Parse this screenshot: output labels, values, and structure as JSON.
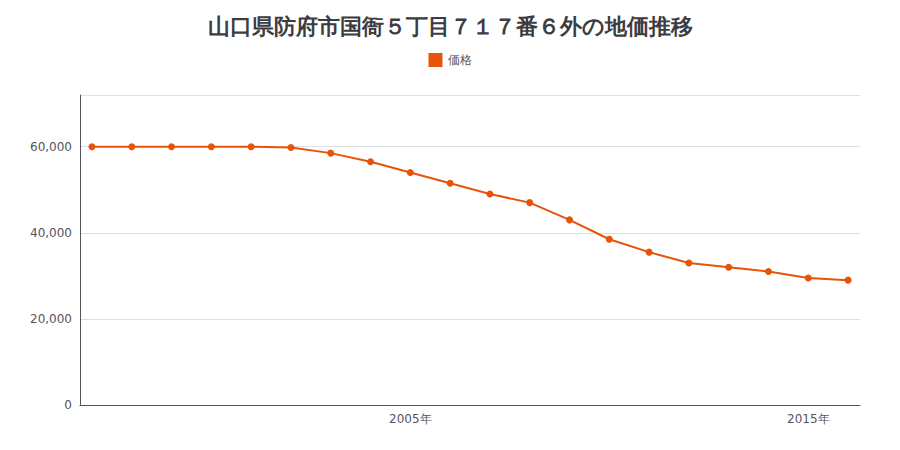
{
  "chart_data": {
    "type": "line",
    "title": "山口県防府市国衙５丁目７１７番６外の地価推移",
    "x": [
      1997,
      1998,
      1999,
      2000,
      2001,
      2002,
      2003,
      2004,
      2005,
      2006,
      2007,
      2008,
      2009,
      2010,
      2011,
      2012,
      2013,
      2014,
      2015,
      2016
    ],
    "series": [
      {
        "name": "価格",
        "color": "#e8530a",
        "marker": "circle",
        "values": [
          60000,
          60000,
          60000,
          60000,
          60000,
          59800,
          58500,
          56500,
          54000,
          51500,
          49000,
          47000,
          43000,
          38500,
          35500,
          33000,
          32000,
          31000,
          29500,
          29000
        ]
      }
    ],
    "xlim": [
      1996.7,
      2016.3
    ],
    "xticks": [
      {
        "value": 2005,
        "label": "2005年"
      },
      {
        "value": 2015,
        "label": "2015年"
      }
    ],
    "ylim": [
      0,
      72000
    ],
    "yticks": [
      0,
      {
        "value": 20000,
        "label": "20,000"
      },
      {
        "value": 40000,
        "label": "40,000"
      },
      {
        "value": 60000,
        "label": "60,000"
      }
    ],
    "grid": true,
    "legend": "top"
  }
}
